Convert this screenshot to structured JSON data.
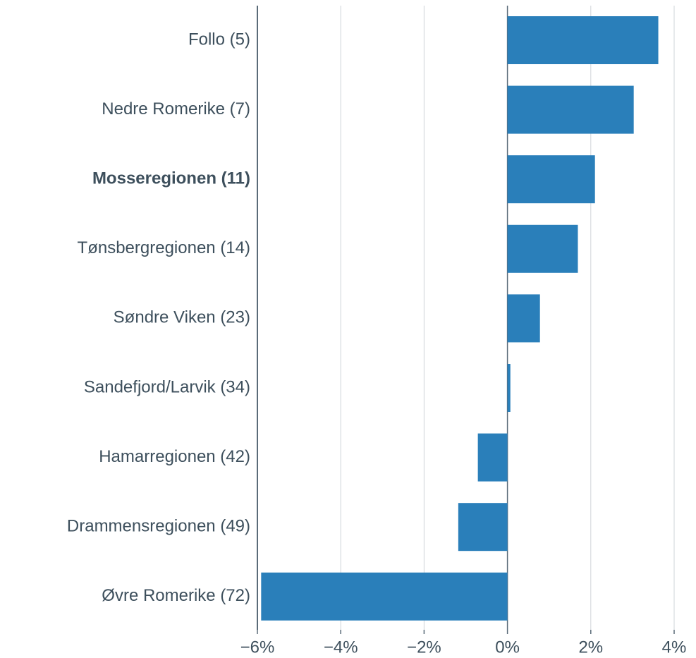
{
  "chart_data": {
    "type": "hbar",
    "categories": [
      "Follo (5)",
      "Nedre Romerike (7)",
      "Mosseregionen (11)",
      "Tønsbergregionen (14)",
      "Søndre Viken (23)",
      "Sandefjord/Larvik (34)",
      "Hamarregionen (42)",
      "Drammensregionen (49)",
      "Øvre Romerike (72)"
    ],
    "values": [
      3.62,
      3.03,
      2.1,
      1.69,
      0.78,
      0.07,
      -0.71,
      -1.18,
      -5.91
    ],
    "color": "#2a7fba",
    "highlight_index": 2,
    "xlim": [
      -6,
      4
    ],
    "xticks": [
      {
        "value": -6,
        "label": "−6%"
      },
      {
        "value": -4,
        "label": "−4%"
      },
      {
        "value": -2,
        "label": "−2%"
      },
      {
        "value": 0,
        "label": "0%"
      },
      {
        "value": 2,
        "label": "2%"
      },
      {
        "value": 4,
        "label": "4%"
      }
    ],
    "grid": true
  }
}
